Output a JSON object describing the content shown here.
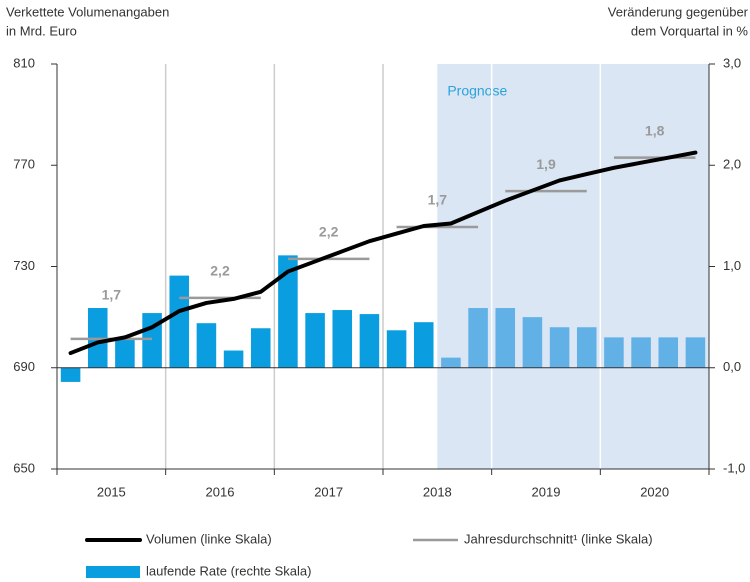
{
  "chart_data": {
    "type": "combo",
    "y_title_lines": [
      "Verkettete Volumenangaben",
      "in Mrd. Euro"
    ],
    "y2_title_lines": [
      "Veränderung gegenüber",
      "dem Vorquartal in %"
    ],
    "forecast_label": "Prognose",
    "categories": [
      "2015",
      "2016",
      "2017",
      "2018",
      "2019",
      "2020"
    ],
    "ylim": [
      650,
      810
    ],
    "yticks": [
      650,
      690,
      730,
      770,
      810
    ],
    "y2lim": [
      -1,
      3
    ],
    "y2ticks": [
      {
        "value": -1,
        "label": "-1,0"
      },
      {
        "value": 0,
        "label": "0,0"
      },
      {
        "value": 1,
        "label": "1,0"
      },
      {
        "value": 2,
        "label": "2,0"
      },
      {
        "value": 3,
        "label": "3,0"
      }
    ],
    "series": [
      {
        "name": "Volumen (linke Skala)",
        "type": "line",
        "color": "#000000",
        "values": [
          [
            695.8,
            700,
            702,
            706
          ],
          [
            712.4,
            715.6,
            717.2,
            720
          ],
          [
            728,
            732,
            736,
            740
          ],
          [
            743,
            746,
            747,
            751.5
          ],
          [
            756,
            760,
            764,
            766.5
          ],
          [
            769,
            771,
            773,
            775
          ]
        ]
      },
      {
        "name": "Jahresdurchschnitt¹ (linke Skala)",
        "type": "annual",
        "color": "#9a9a9a",
        "values": [
          701.4,
          717.6,
          733,
          745.6,
          759.8,
          773
        ]
      },
      {
        "name": "laufende Rate (rechte Skala)",
        "type": "bar",
        "axis": "y2",
        "color": "#0a9ee0",
        "forecast_color": "#62b1e6",
        "values": [
          [
            -0.14,
            0.59,
            0.28,
            0.54
          ],
          [
            0.91,
            0.44,
            0.17,
            0.39
          ],
          [
            1.11,
            0.54,
            0.57,
            0.53
          ],
          [
            0.37,
            0.45,
            0.1,
            0.59
          ],
          [
            0.59,
            0.5,
            0.4,
            0.4
          ],
          [
            0.3,
            0.3,
            0.3,
            0.3
          ]
        ],
        "forecast": [
          [
            false,
            false,
            false,
            false
          ],
          [
            false,
            false,
            false,
            false
          ],
          [
            false,
            false,
            false,
            false
          ],
          [
            false,
            false,
            true,
            true
          ],
          [
            true,
            true,
            true,
            true
          ],
          [
            true,
            true,
            true,
            true
          ]
        ]
      }
    ],
    "annotations": {
      "values": [
        1.7,
        2.2,
        2.2,
        1.7,
        1.9,
        1.8
      ],
      "value_labels": [
        "1,7",
        "2,2",
        "2,2",
        "1,7",
        "1,9",
        "1,8"
      ]
    }
  }
}
